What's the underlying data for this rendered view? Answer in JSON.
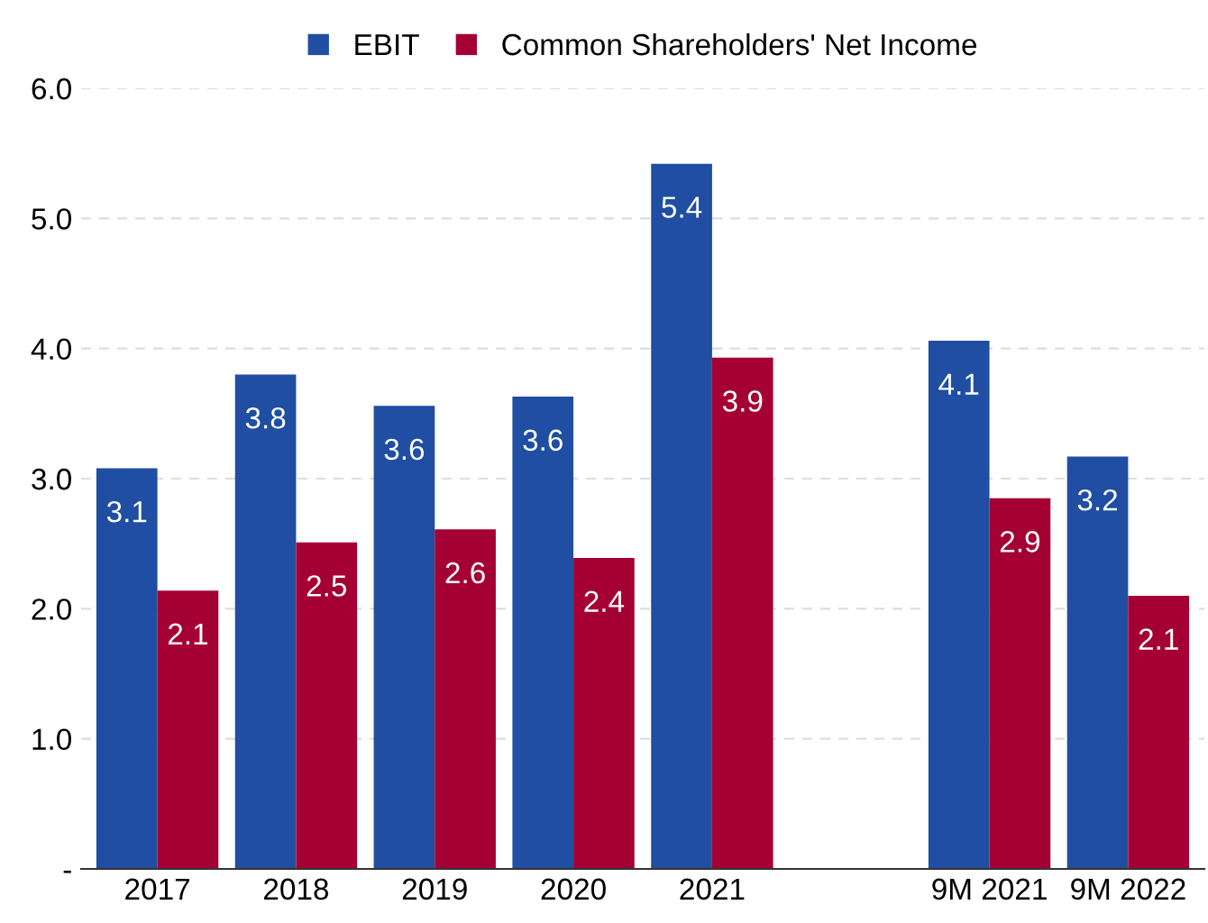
{
  "chart_data": {
    "type": "bar",
    "categories": [
      "2017",
      "2018",
      "2019",
      "2020",
      "2021",
      null,
      "9M 2021",
      "9M 2022"
    ],
    "series": [
      {
        "name": "EBIT",
        "color": "#1f4ea3",
        "values": [
          3.08,
          3.8,
          3.56,
          3.63,
          5.42,
          null,
          4.06,
          3.17
        ],
        "value_labels": [
          "3.1",
          "3.8",
          "3.6",
          "3.6",
          "5.4",
          null,
          "4.1",
          "3.2"
        ]
      },
      {
        "name": "Common Shareholders' Net Income",
        "color": "#a50034",
        "values": [
          2.14,
          2.51,
          2.61,
          2.39,
          3.93,
          null,
          2.85,
          2.1
        ],
        "value_labels": [
          "2.1",
          "2.5",
          "2.6",
          "2.4",
          "3.9",
          null,
          "2.9",
          "2.1"
        ]
      }
    ],
    "ylim": [
      0,
      6
    ],
    "yticks": [
      {
        "value": 0,
        "label": "-"
      },
      {
        "value": 1,
        "label": "1.0"
      },
      {
        "value": 2,
        "label": "2.0"
      },
      {
        "value": 3,
        "label": "3.0"
      },
      {
        "value": 4,
        "label": "4.0"
      },
      {
        "value": 5,
        "label": "5.0"
      },
      {
        "value": 6,
        "label": "6.0"
      }
    ],
    "grid": "y",
    "legend": "top"
  }
}
